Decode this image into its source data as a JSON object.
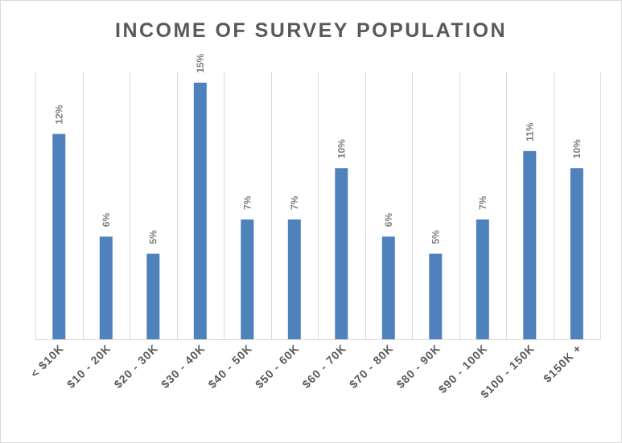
{
  "chart_data": {
    "type": "bar",
    "title": "INCOME OF SURVEY POPULATION",
    "xlabel": "",
    "ylabel": "",
    "categories": [
      "< $10K",
      "$10 - 20K",
      "$20 - 30K",
      "$30 - 40K",
      "$40 - 50K",
      "$50 - 60K",
      "$60 - 70K",
      "$70 - 80K",
      "$80 - 90K",
      "$90 - 100K",
      "$100 - 150K",
      "$150K +"
    ],
    "values": [
      12,
      6,
      5,
      15,
      7,
      7,
      10,
      6,
      5,
      7,
      11,
      10
    ],
    "data_labels": [
      "12%",
      "6%",
      "5%",
      "15%",
      "7%",
      "7%",
      "10%",
      "6%",
      "5%",
      "7%",
      "11%",
      "10%"
    ],
    "ylim": [
      0,
      15.6
    ],
    "grid": "vertical category separators",
    "legend": "none",
    "colors": {
      "bar": "#4f81bd",
      "grid": "#d9d9d9",
      "axis": "#d9d9d9",
      "text": "#595959",
      "data_label": "#7f7f7f"
    }
  }
}
